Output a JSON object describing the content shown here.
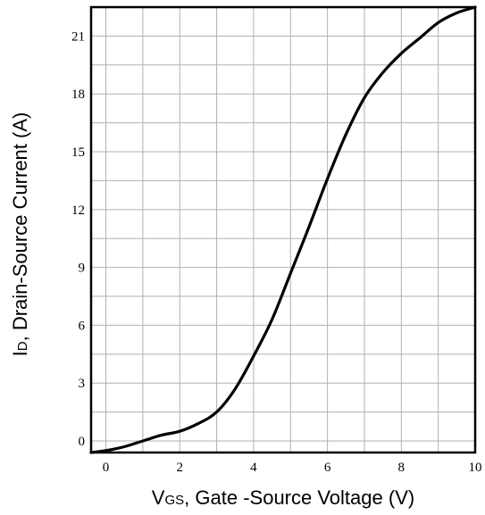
{
  "chart_data": {
    "type": "line",
    "xlabel_main": "V",
    "xlabel_sub": "GS",
    "xlabel_rest": ", Gate -Source Voltage (V)",
    "ylabel_main": "I",
    "ylabel_sub": "D",
    "ylabel_rest": ", Drain-Source Current (A)",
    "xlim": [
      -0.4,
      10
    ],
    "ylim": [
      -0.6,
      22.5
    ],
    "x_ticks": [
      0,
      2,
      4,
      6,
      8,
      10
    ],
    "y_ticks": [
      0,
      3,
      6,
      9,
      12,
      15,
      18,
      21
    ],
    "x_tick_labels": [
      "0",
      "2",
      "4",
      "6",
      "8",
      "10"
    ],
    "y_tick_labels": [
      "0",
      "3",
      "6",
      "9",
      12,
      15,
      18,
      21
    ],
    "grid": true,
    "series": [
      {
        "x": [
          -0.4,
          0.0,
          0.5,
          1.0,
          1.5,
          2.0,
          2.5,
          3.0,
          3.5,
          4.0,
          4.5,
          5.0,
          5.5,
          6.0,
          6.5,
          7.0,
          7.5,
          8.0,
          8.5,
          9.0,
          9.5,
          10.0
        ],
        "y": [
          -0.6,
          -0.5,
          -0.3,
          0.0,
          0.3,
          0.5,
          0.9,
          1.5,
          2.7,
          4.4,
          6.3,
          8.7,
          11.1,
          13.6,
          15.9,
          17.8,
          19.1,
          20.1,
          20.9,
          21.7,
          22.2,
          22.5
        ]
      }
    ]
  }
}
